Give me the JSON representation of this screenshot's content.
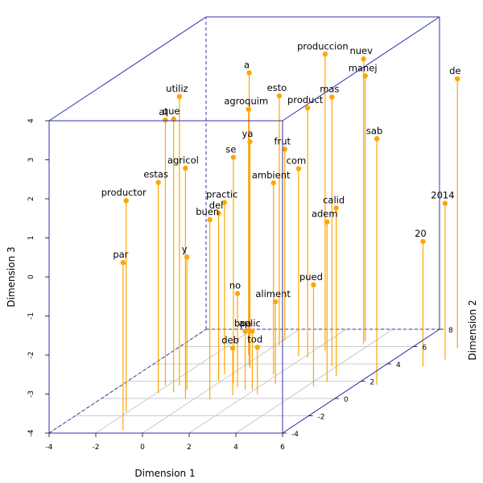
{
  "chart_data": {
    "type": "scatter3d",
    "title": "",
    "xlabel": "Dimension 1",
    "ylabel": "Dimension 2",
    "zlabel": "Dimension 3",
    "xlim": [
      -4,
      6
    ],
    "ylim": [
      -4,
      8
    ],
    "zlim": [
      -4,
      4
    ],
    "x_ticks": [
      "-4",
      "-2",
      "0",
      "2",
      "4",
      "6"
    ],
    "y_ticks": [
      "-4",
      "-2",
      "0",
      "2",
      "4",
      "6",
      "8"
    ],
    "z_ticks": [
      "-4",
      "-3",
      "-2",
      "-1",
      "0",
      "1",
      "2",
      "3",
      "4"
    ],
    "grid": true,
    "colors": {
      "point": "#FFA500",
      "stem": "#FFA500",
      "box": "#3333AA",
      "grid": "#BEBEBE"
    },
    "points": [
      {
        "label": "a",
        "x": 0.2,
        "y": 3.8,
        "z": 3.5
      },
      {
        "label": "produccion",
        "x": 2.5,
        "y": 5.5,
        "z": 3.6
      },
      {
        "label": "nuev",
        "x": 3.7,
        "y": 6.3,
        "z": 3.3
      },
      {
        "label": "utiliz",
        "x": -1.5,
        "y": 1.5,
        "z": 3.4
      },
      {
        "label": "esto",
        "x": 0.2,
        "y": 6.1,
        "z": 2.4
      },
      {
        "label": "manej",
        "x": 3.6,
        "y": 6.6,
        "z": 2.8
      },
      {
        "label": "que",
        "x": -1.3,
        "y": 0.7,
        "z": 3.0
      },
      {
        "label": "agroquim",
        "x": -0.5,
        "y": 5.0,
        "z": 2.3
      },
      {
        "label": "mas",
        "x": 3.8,
        "y": 3.7,
        "z": 2.9
      },
      {
        "label": "al",
        "x": -2.1,
        "y": 1.5,
        "z": 2.8
      },
      {
        "label": "product",
        "x": 2.2,
        "y": 4.7,
        "z": 2.4
      },
      {
        "label": "de",
        "x": 8.0,
        "y": 5.8,
        "z": 2.9
      },
      {
        "label": "ya",
        "x": 0.4,
        "y": 3.5,
        "z": 1.8
      },
      {
        "label": "frut",
        "x": 0.1,
        "y": 6.7,
        "z": 0.9
      },
      {
        "label": "com",
        "x": 1.7,
        "y": 4.9,
        "z": 0.8
      },
      {
        "label": "agricol",
        "x": -0.4,
        "y": 0.0,
        "z": 1.9
      },
      {
        "label": "se",
        "x": 0.7,
        "y": 1.7,
        "z": 1.8
      },
      {
        "label": "sab",
        "x": 6.9,
        "y": 1.6,
        "z": 2.3
      },
      {
        "label": "estas",
        "x": -1.9,
        "y": 0.6,
        "z": 1.4
      },
      {
        "label": "ambient",
        "x": 1.8,
        "y": 2.8,
        "z": 0.9
      },
      {
        "label": "practic",
        "x": -0.3,
        "y": 2.8,
        "z": 0.4
      },
      {
        "label": "buen",
        "x": 0.7,
        "y": -0.1,
        "z": 0.6
      },
      {
        "label": "productor",
        "x": -2.1,
        "y": -1.5,
        "z": 1.4
      },
      {
        "label": "adem",
        "x": 4.6,
        "y": 1.9,
        "z": 0.1
      },
      {
        "label": "calid",
        "x": 4.6,
        "y": 2.6,
        "z": 0.3
      },
      {
        "label": "2014",
        "x": 8.2,
        "y": 4.5,
        "z": 0.0
      },
      {
        "label": "del",
        "x": -0.1,
        "y": 2.0,
        "z": 0.3
      },
      {
        "label": "20",
        "x": 7.7,
        "y": 3.7,
        "z": -0.8
      },
      {
        "label": "par",
        "x": -1.0,
        "y": -3.7,
        "z": 0.3
      },
      {
        "label": "y",
        "x": -0.9,
        "y": 1.0,
        "z": -0.6
      },
      {
        "label": "pued",
        "x": 4.3,
        "y": 1.4,
        "z": -1.4
      },
      {
        "label": "no",
        "x": 1.1,
        "y": 1.3,
        "z": -1.6
      },
      {
        "label": "aliment",
        "x": 2.5,
        "y": 1.7,
        "z": -1.9
      },
      {
        "label": "bpa",
        "x": 1.6,
        "y": 1.0,
        "z": -2.5
      },
      {
        "label": "aplic",
        "x": 1.9,
        "y": 1.0,
        "z": -2.5
      },
      {
        "label": "deb",
        "x": 1.4,
        "y": 0.4,
        "z": -2.8
      },
      {
        "label": "tod",
        "x": 2.4,
        "y": 0.5,
        "z": -2.8
      }
    ]
  }
}
